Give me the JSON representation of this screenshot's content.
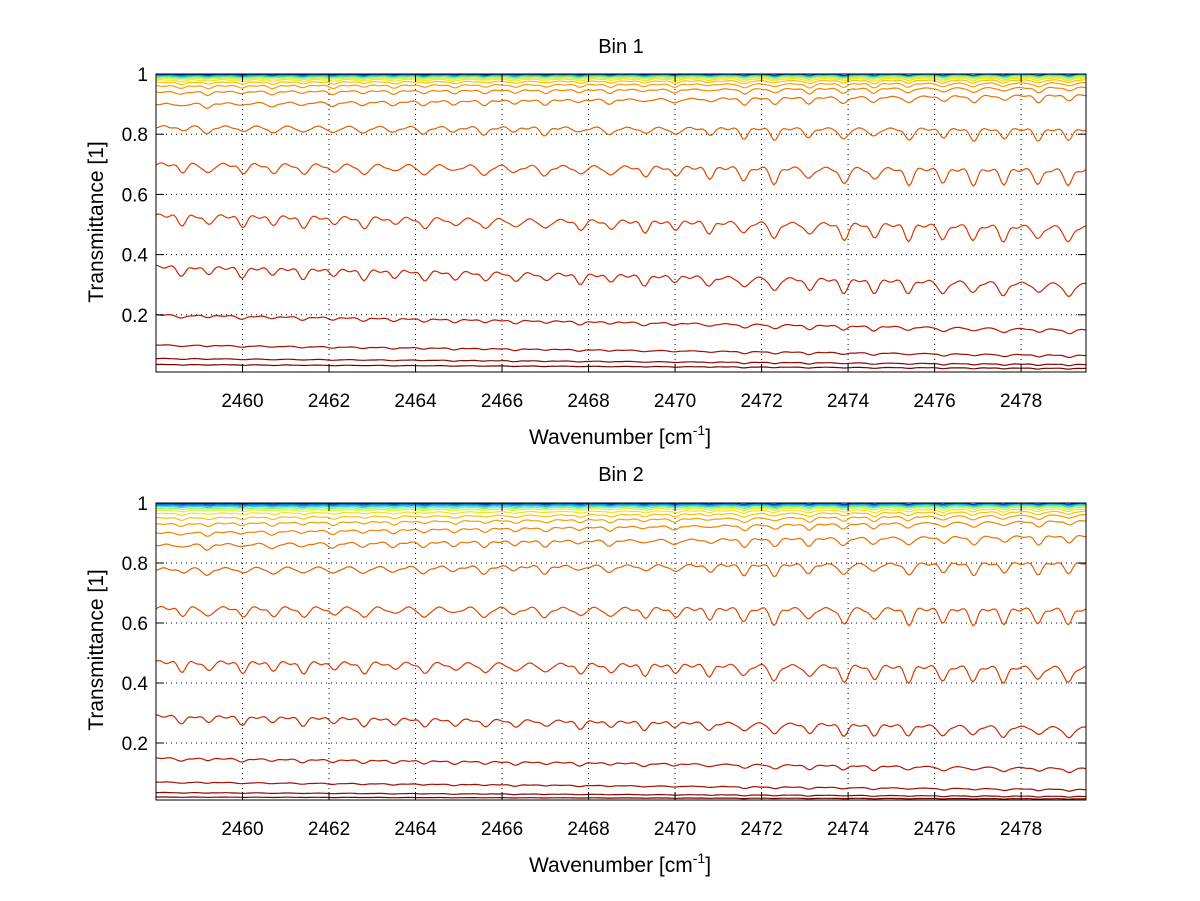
{
  "chart_data": [
    {
      "type": "line",
      "title": "Bin 1",
      "xlabel": "Wavenumber [cm",
      "xlabel_sup": "-1",
      "xlabel_close": "]",
      "ylabel": "Transmittance [1]",
      "xlim": [
        2458,
        2479.5
      ],
      "ylim": [
        0.01,
        1.0
      ],
      "xticks": [
        2460,
        2462,
        2464,
        2466,
        2468,
        2470,
        2472,
        2474,
        2476,
        2478
      ],
      "xtick_labels": [
        "2460",
        "2462",
        "2464",
        "2466",
        "2468",
        "2470",
        "2472",
        "2474",
        "2476",
        "2478"
      ],
      "yticks": [
        0.2,
        0.4,
        0.6,
        0.8,
        1.0
      ],
      "ytick_labels": [
        "0.2",
        "0.4",
        "0.6",
        "0.8",
        "1"
      ],
      "grid": true,
      "series": [
        {
          "start": 0.998,
          "end": 0.998,
          "dip": 0.002,
          "color": "#0a2e9e"
        },
        {
          "start": 0.996,
          "end": 0.997,
          "dip": 0.003,
          "color": "#0066e0"
        },
        {
          "start": 0.994,
          "end": 0.996,
          "dip": 0.003,
          "color": "#00a8e8"
        },
        {
          "start": 0.992,
          "end": 0.995,
          "dip": 0.004,
          "color": "#2dd8c8"
        },
        {
          "start": 0.989,
          "end": 0.993,
          "dip": 0.004,
          "color": "#8ff070"
        },
        {
          "start": 0.985,
          "end": 0.99,
          "dip": 0.005,
          "color": "#d8f040"
        },
        {
          "start": 0.98,
          "end": 0.986,
          "dip": 0.006,
          "color": "#f5e020"
        },
        {
          "start": 0.972,
          "end": 0.98,
          "dip": 0.007,
          "color": "#f8c010"
        },
        {
          "start": 0.96,
          "end": 0.97,
          "dip": 0.009,
          "color": "#f5a000"
        },
        {
          "start": 0.94,
          "end": 0.955,
          "dip": 0.011,
          "color": "#f08400"
        },
        {
          "start": 0.9,
          "end": 0.93,
          "dip": 0.015,
          "color": "#e87000"
        },
        {
          "start": 0.825,
          "end": 0.815,
          "dip": 0.025,
          "color": "#e06000"
        },
        {
          "start": 0.7,
          "end": 0.68,
          "dip": 0.035,
          "color": "#e04a00"
        },
        {
          "start": 0.53,
          "end": 0.49,
          "dip": 0.035,
          "color": "#d83a00"
        },
        {
          "start": 0.36,
          "end": 0.3,
          "dip": 0.03,
          "color": "#c82800"
        },
        {
          "start": 0.2,
          "end": 0.15,
          "dip": 0.01,
          "color": "#b81800"
        },
        {
          "start": 0.1,
          "end": 0.065,
          "dip": 0.005,
          "color": "#a00e00"
        },
        {
          "start": 0.055,
          "end": 0.035,
          "dip": 0.003,
          "color": "#8a0800"
        },
        {
          "start": 0.035,
          "end": 0.022,
          "dip": 0.002,
          "color": "#700400"
        }
      ]
    },
    {
      "type": "line",
      "title": "Bin 2",
      "xlabel": "Wavenumber [cm",
      "xlabel_sup": "-1",
      "xlabel_close": "]",
      "ylabel": "Transmittance [1]",
      "xlim": [
        2458,
        2479.5
      ],
      "ylim": [
        0.01,
        1.0
      ],
      "xticks": [
        2460,
        2462,
        2464,
        2466,
        2468,
        2470,
        2472,
        2474,
        2476,
        2478
      ],
      "xtick_labels": [
        "2460",
        "2462",
        "2464",
        "2466",
        "2468",
        "2470",
        "2472",
        "2474",
        "2476",
        "2478"
      ],
      "yticks": [
        0.2,
        0.4,
        0.6,
        0.8,
        1.0
      ],
      "ytick_labels": [
        "0.2",
        "0.4",
        "0.6",
        "0.8",
        "1"
      ],
      "grid": true,
      "series": [
        {
          "start": 0.998,
          "end": 0.998,
          "dip": 0.002,
          "color": "#0a2e9e"
        },
        {
          "start": 0.995,
          "end": 0.997,
          "dip": 0.003,
          "color": "#0066e0"
        },
        {
          "start": 0.992,
          "end": 0.995,
          "dip": 0.003,
          "color": "#00a8e8"
        },
        {
          "start": 0.988,
          "end": 0.993,
          "dip": 0.004,
          "color": "#2dd8c8"
        },
        {
          "start": 0.982,
          "end": 0.99,
          "dip": 0.004,
          "color": "#8ff070"
        },
        {
          "start": 0.975,
          "end": 0.986,
          "dip": 0.005,
          "color": "#d8f040"
        },
        {
          "start": 0.965,
          "end": 0.98,
          "dip": 0.006,
          "color": "#f5e020"
        },
        {
          "start": 0.95,
          "end": 0.972,
          "dip": 0.008,
          "color": "#f8c010"
        },
        {
          "start": 0.93,
          "end": 0.96,
          "dip": 0.01,
          "color": "#f5a000"
        },
        {
          "start": 0.9,
          "end": 0.94,
          "dip": 0.012,
          "color": "#f08400"
        },
        {
          "start": 0.86,
          "end": 0.89,
          "dip": 0.018,
          "color": "#e87000"
        },
        {
          "start": 0.78,
          "end": 0.8,
          "dip": 0.025,
          "color": "#e06000"
        },
        {
          "start": 0.65,
          "end": 0.645,
          "dip": 0.035,
          "color": "#e04a00"
        },
        {
          "start": 0.47,
          "end": 0.45,
          "dip": 0.035,
          "color": "#d83a00"
        },
        {
          "start": 0.29,
          "end": 0.25,
          "dip": 0.025,
          "color": "#c82800"
        },
        {
          "start": 0.15,
          "end": 0.115,
          "dip": 0.01,
          "color": "#b81800"
        },
        {
          "start": 0.07,
          "end": 0.045,
          "dip": 0.004,
          "color": "#a00e00"
        },
        {
          "start": 0.035,
          "end": 0.022,
          "dip": 0.002,
          "color": "#8a0800"
        },
        {
          "start": 0.02,
          "end": 0.014,
          "dip": 0.001,
          "color": "#700400"
        }
      ]
    }
  ]
}
